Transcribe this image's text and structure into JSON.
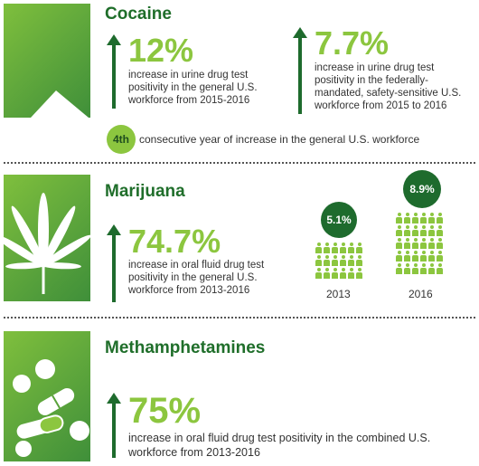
{
  "cocaine": {
    "title": "Cocaine",
    "stat1": {
      "value": "12%",
      "desc": "increase in urine drug test positivity in the general U.S. workforce from 2015-2016"
    },
    "stat2": {
      "value": "7.7%",
      "desc": "increase in urine drug test positivity in the federally-mandated, safety-sensitive U.S. workforce  from 2015 to 2016"
    },
    "badge": "4th",
    "badge_text": "consecutive year of increase in the general U.S. workforce"
  },
  "marijuana": {
    "title": "Marijuana",
    "stat": {
      "value": "74.7%",
      "desc": "increase in oral fluid drug test positivity in the general U.S. workforce from 2013-2016"
    },
    "years": [
      {
        "label": "2013",
        "percent": "5.1%"
      },
      {
        "label": "2016",
        "percent": "8.9%"
      }
    ]
  },
  "meth": {
    "title": "Methamphetamines",
    "stat": {
      "value": "75%",
      "desc": "increase in oral fluid drug test positivity in the combined U.S. workforce from 2013-2016"
    }
  },
  "colors": {
    "dark_green": "#1e6b2d",
    "light_green": "#8cc63f"
  }
}
